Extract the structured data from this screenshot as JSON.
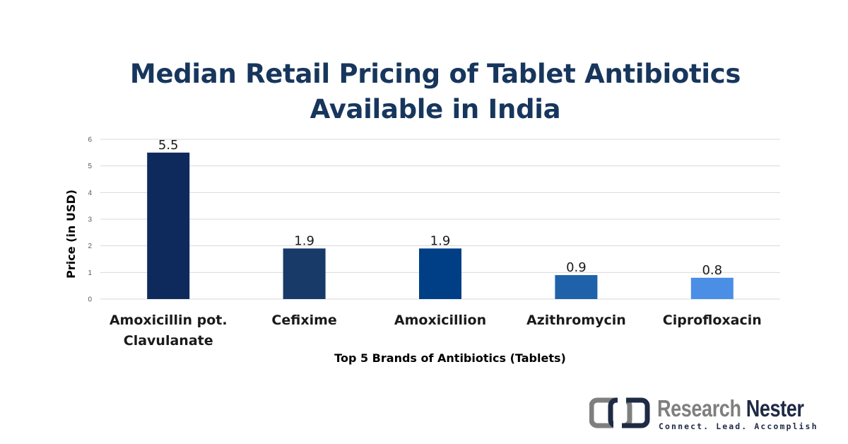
{
  "chart_data": {
    "type": "bar",
    "title_lines": [
      "Median Retail Pricing of Tablet Antibiotics",
      "Available in India"
    ],
    "xlabel": "Top 5 Brands of Antibiotics (Tablets)",
    "ylabel": "Price (in USD)",
    "ylim": [
      0,
      6
    ],
    "yticks": [
      "0",
      "1",
      "2",
      "3",
      "4",
      "5",
      "6"
    ],
    "grid": true,
    "categories": [
      [
        "Amoxicillin pot.",
        "Clavulanate"
      ],
      [
        "Cefixime"
      ],
      [
        "Amoxicillion"
      ],
      [
        "Azithromycin"
      ],
      [
        "Ciprofloxacin"
      ]
    ],
    "values": [
      5.5,
      1.9,
      1.9,
      0.9,
      0.8
    ],
    "value_labels": [
      "5.5",
      "1.9",
      "1.9",
      "0.9",
      "0.8"
    ],
    "colors": [
      "#0e2a5c",
      "#173a69",
      "#003f86",
      "#1f62aa",
      "#4a8ee6"
    ]
  },
  "logo": {
    "name_part1": "Research",
    "name_part2": "Nester",
    "tagline": "Connect. Lead. Accomplish",
    "colors": {
      "gray": "#7f7f7f",
      "navy": "#1f2a44"
    }
  }
}
